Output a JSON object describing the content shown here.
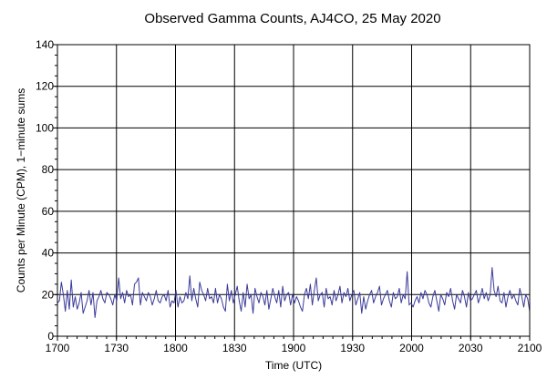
{
  "chart_data": {
    "type": "line",
    "title": "Observed Gamma Counts, AJ4CO, 25 May 2020",
    "xlabel": "Time (UTC)",
    "ylabel": "Counts per Minute (CPM), 1−minute sums",
    "x_tick_labels": [
      "1700",
      "1730",
      "1800",
      "1830",
      "1900",
      "1930",
      "2000",
      "2030",
      "2100"
    ],
    "y_tick_labels": [
      "0",
      "20",
      "40",
      "60",
      "80",
      "100",
      "120",
      "140"
    ],
    "x_unit": "minutes from 1700 UTC",
    "xlim": [
      0,
      240
    ],
    "ylim": [
      0,
      140
    ],
    "y_ticks": [
      0,
      20,
      40,
      60,
      80,
      100,
      120,
      140
    ],
    "grid": true,
    "line_color": "#3a3a9a",
    "series": [
      {
        "values": [
          16,
          17,
          26,
          20,
          12,
          22,
          13,
          27,
          14,
          19,
          13,
          16,
          21,
          11,
          14,
          17,
          22,
          15,
          21,
          9,
          17,
          19,
          22,
          18,
          16,
          21,
          20,
          18,
          15,
          20,
          17,
          28,
          18,
          21,
          16,
          22,
          19,
          20,
          15,
          25,
          26,
          28,
          15,
          21,
          19,
          17,
          21,
          19,
          15,
          18,
          22,
          17,
          16,
          19,
          20,
          17,
          22,
          14,
          17,
          16,
          22,
          14,
          19,
          16,
          17,
          21,
          18,
          29,
          17,
          23,
          18,
          14,
          26,
          22,
          20,
          17,
          23,
          18,
          19,
          16,
          23,
          16,
          20,
          18,
          14,
          12,
          25,
          17,
          22,
          16,
          20,
          24,
          17,
          12,
          21,
          14,
          25,
          18,
          20,
          11,
          23,
          19,
          16,
          21,
          19,
          15,
          22,
          13,
          18,
          23,
          19,
          16,
          22,
          14,
          24,
          17,
          20,
          21,
          15,
          20,
          16,
          19,
          17,
          14,
          12,
          20,
          23,
          18,
          25,
          15,
          22,
          28,
          17,
          20,
          21,
          14,
          23,
          18,
          19,
          15,
          22,
          17,
          20,
          24,
          16,
          21,
          19,
          23,
          17,
          20,
          22,
          15,
          18,
          21,
          11,
          19,
          13,
          17,
          20,
          22,
          16,
          19,
          21,
          24,
          15,
          18,
          20,
          22,
          17,
          14,
          21,
          18,
          19,
          23,
          16,
          20,
          18,
          31,
          15,
          16,
          14,
          17,
          19,
          16,
          21,
          18,
          22,
          20,
          16,
          14,
          19,
          22,
          17,
          12,
          20,
          18,
          15,
          21,
          19,
          23,
          17,
          13,
          20,
          18,
          16,
          22,
          19,
          14,
          21,
          17,
          18,
          20,
          22,
          16,
          19,
          23,
          18,
          21,
          17,
          20,
          33,
          22,
          19,
          24,
          17,
          16,
          21,
          14,
          19,
          22,
          18,
          20,
          17,
          15,
          23,
          19,
          14,
          20,
          18,
          12
        ]
      }
    ]
  }
}
